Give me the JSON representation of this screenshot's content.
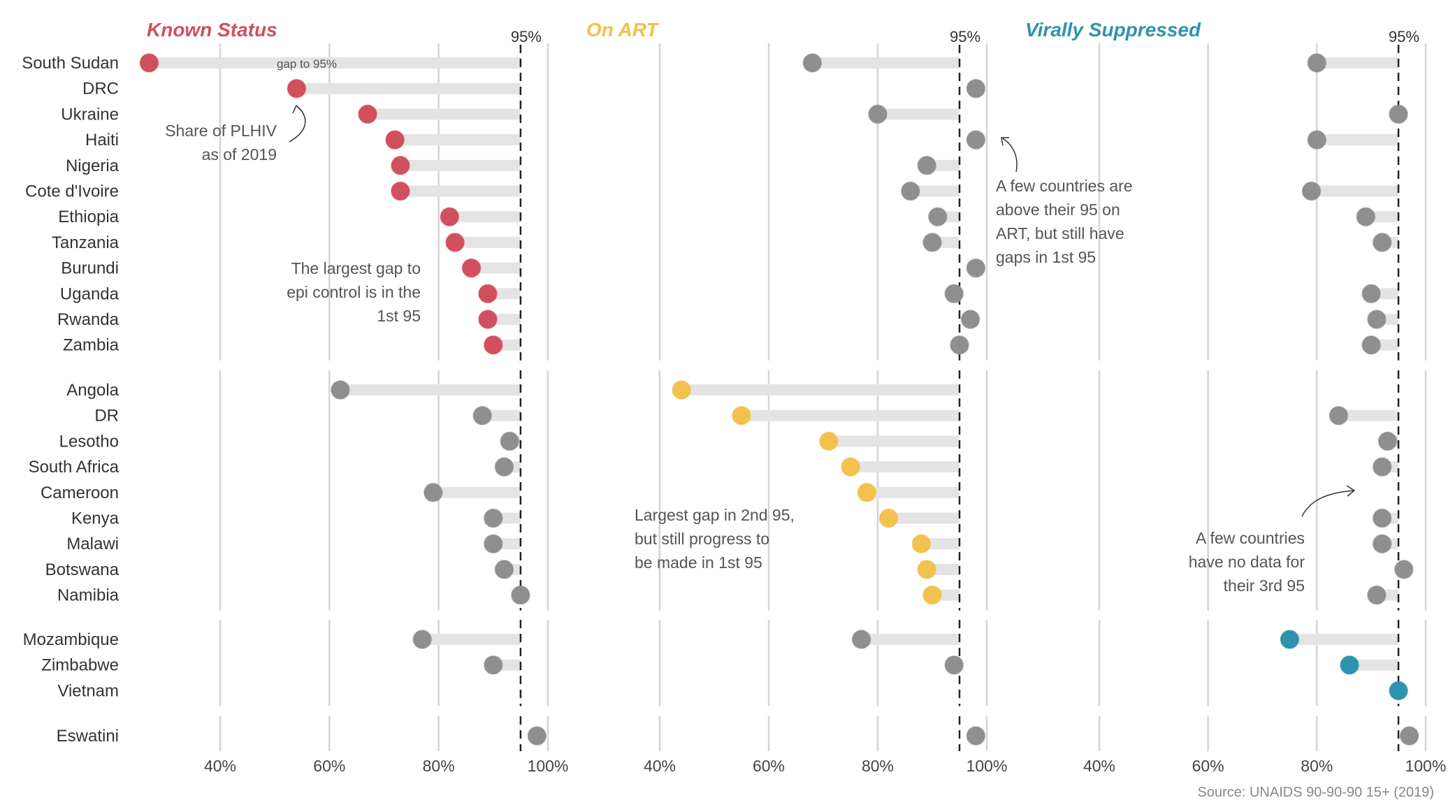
{
  "chart_data": {
    "type": "lollipop",
    "source": "Source: UNAIDS 90-90-90 15+ (2019)",
    "target_label": "95%",
    "target": 95,
    "xlim": [
      25,
      100
    ],
    "x_ticks": [
      40,
      60,
      80,
      100
    ],
    "x_tick_labels": [
      "40%",
      "60%",
      "80%",
      "100%"
    ],
    "grid": true,
    "colors": {
      "known_status": "#d0505e",
      "on_art": "#f2c14e",
      "virally_suppressed": "#2e93ad",
      "neutral": "#8f8f8f",
      "gap_bar": "#e4e4e4",
      "gridline": "#d4d4d4",
      "target_line": "#222222"
    },
    "panels": [
      {
        "key": "known_status",
        "title": "Known Status"
      },
      {
        "key": "on_art",
        "title": "On ART"
      },
      {
        "key": "virally_suppressed",
        "title": "Virally Suppressed"
      }
    ],
    "groups": [
      {
        "highlight_panel": "known_status",
        "countries": [
          {
            "name": "South Sudan",
            "values": [
              27,
              68,
              80
            ]
          },
          {
            "name": "DRC",
            "values": [
              54,
              98,
              null
            ]
          },
          {
            "name": "Ukraine",
            "values": [
              67,
              80,
              95
            ]
          },
          {
            "name": "Haiti",
            "values": [
              72,
              98,
              80
            ]
          },
          {
            "name": "Nigeria",
            "values": [
              73,
              89,
              null
            ]
          },
          {
            "name": "Cote d'Ivoire",
            "values": [
              73,
              86,
              79
            ]
          },
          {
            "name": "Ethiopia",
            "values": [
              82,
              91,
              89
            ]
          },
          {
            "name": "Tanzania",
            "values": [
              83,
              90,
              92
            ]
          },
          {
            "name": "Burundi",
            "values": [
              86,
              98,
              null
            ]
          },
          {
            "name": "Uganda",
            "values": [
              89,
              94,
              90
            ]
          },
          {
            "name": "Rwanda",
            "values": [
              89,
              97,
              91
            ]
          },
          {
            "name": "Zambia",
            "values": [
              90,
              95,
              90
            ]
          }
        ]
      },
      {
        "highlight_panel": "on_art",
        "countries": [
          {
            "name": "Angola",
            "values": [
              62,
              44,
              null
            ]
          },
          {
            "name": "DR",
            "values": [
              88,
              55,
              84
            ]
          },
          {
            "name": "Lesotho",
            "values": [
              93,
              71,
              93
            ]
          },
          {
            "name": "South Africa",
            "values": [
              92,
              75,
              92
            ]
          },
          {
            "name": "Cameroon",
            "values": [
              79,
              78,
              null
            ]
          },
          {
            "name": "Kenya",
            "values": [
              90,
              82,
              92
            ]
          },
          {
            "name": "Malawi",
            "values": [
              90,
              88,
              92
            ]
          },
          {
            "name": "Botswana",
            "values": [
              92,
              89,
              96
            ]
          },
          {
            "name": "Namibia",
            "values": [
              95,
              90,
              91
            ]
          }
        ]
      },
      {
        "highlight_panel": "virally_suppressed",
        "countries": [
          {
            "name": "Mozambique",
            "values": [
              77,
              77,
              75
            ]
          },
          {
            "name": "Zimbabwe",
            "values": [
              90,
              94,
              86
            ]
          },
          {
            "name": "Vietnam",
            "values": [
              null,
              null,
              95
            ]
          }
        ]
      },
      {
        "highlight_panel": null,
        "countries": [
          {
            "name": "Eswatini",
            "values": [
              98,
              98,
              97
            ]
          }
        ]
      }
    ],
    "annotations": [
      {
        "panel": "known_status",
        "lines": [
          "gap to 95%"
        ],
        "style": "small"
      },
      {
        "panel": "known_status",
        "lines": [
          "Share of PLHIV",
          "as of 2019"
        ],
        "arrow": true
      },
      {
        "panel": "known_status",
        "lines": [
          "The largest gap to",
          "epi control is in the",
          "1st 95"
        ]
      },
      {
        "panel": "on_art",
        "lines": [
          "A few countries are",
          "above their 95 on",
          "ART, but still have",
          "gaps in 1st 95"
        ],
        "arrow": true
      },
      {
        "panel": "on_art",
        "lines": [
          "Largest gap in 2nd 95,",
          "but still progress to",
          "be made in 1st 95"
        ]
      },
      {
        "panel": "virally_suppressed",
        "lines": [
          "A few countries",
          "have no data for",
          "their 3rd 95"
        ],
        "arrow": true
      }
    ]
  }
}
